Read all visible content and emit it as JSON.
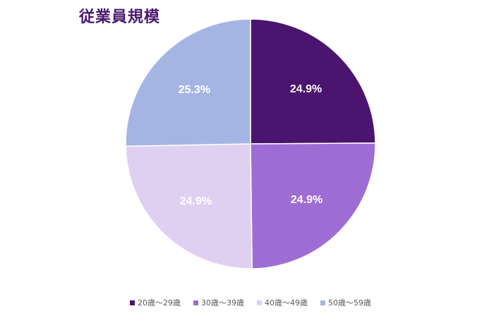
{
  "chart_data": {
    "type": "pie",
    "title": "従業員規模",
    "categories": [
      "20歳～29歳",
      "30歳～39歳",
      "40歳～49歳",
      "50歳～59歳"
    ],
    "values": [
      24.9,
      24.9,
      24.9,
      25.3
    ],
    "value_labels": [
      "24.9%",
      "24.9%",
      "24.9%",
      "25.3%"
    ],
    "colors": [
      "#4b146f",
      "#9e6dd4",
      "#dfd0f2",
      "#a5b5e3"
    ],
    "legend_position": "bottom",
    "start_angle": "12 o'clock",
    "direction": "clockwise"
  }
}
